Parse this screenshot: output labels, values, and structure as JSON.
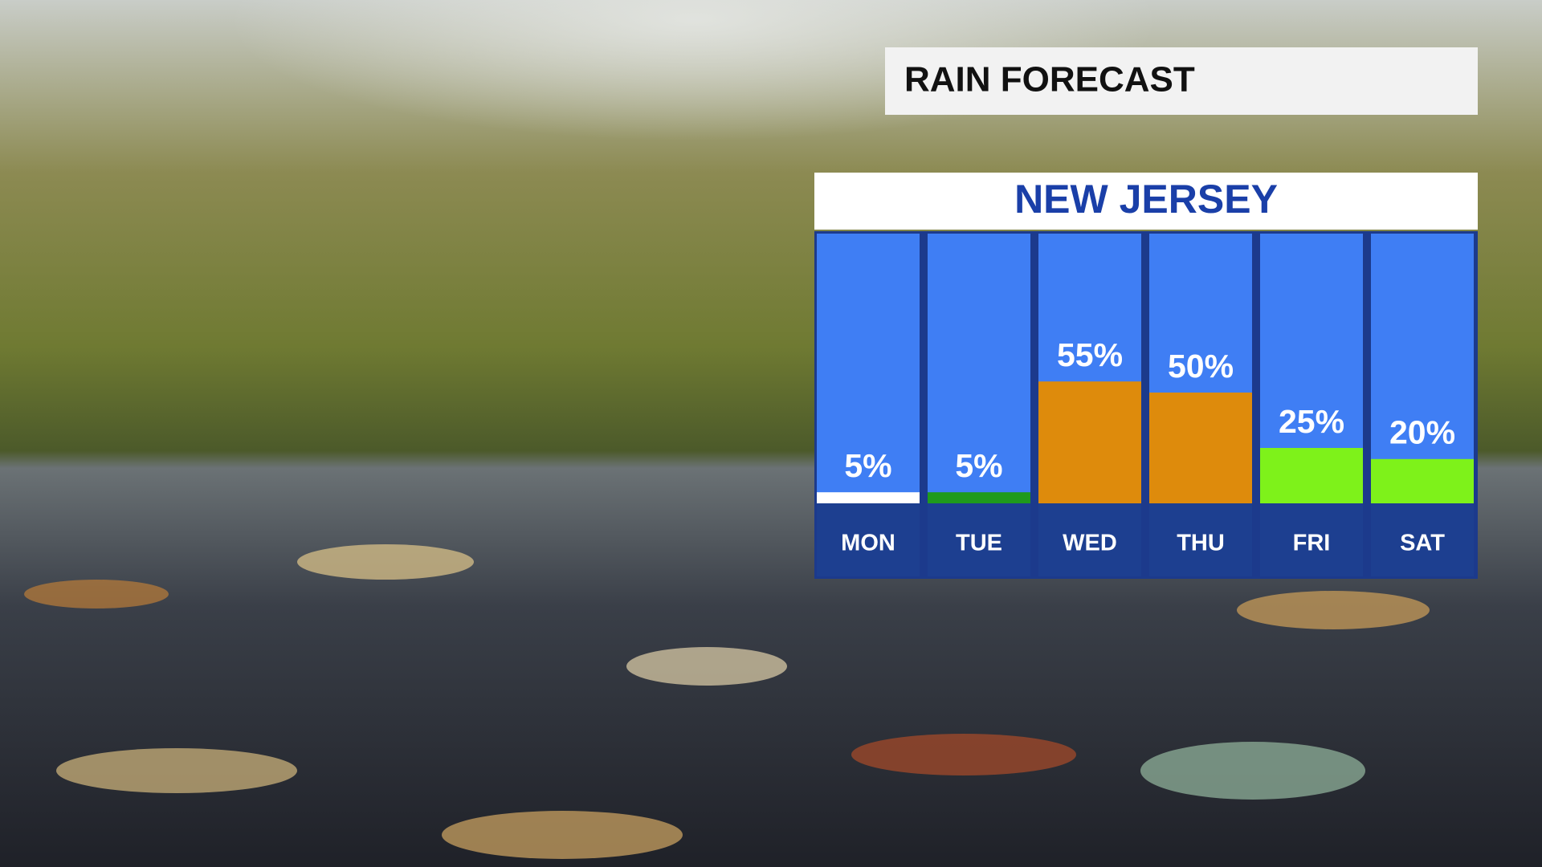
{
  "chart_data": {
    "type": "bar",
    "title": "RAIN FORECAST",
    "subtitle": "NEW JERSEY",
    "categories": [
      "MON",
      "TUE",
      "WED",
      "THU",
      "FRI",
      "SAT"
    ],
    "values": [
      5,
      5,
      55,
      50,
      25,
      20
    ],
    "value_labels": [
      "5%",
      "5%",
      "55%",
      "50%",
      "25%",
      "20%"
    ],
    "colors": [
      "#ffffff",
      "#1f9a1c",
      "#de8b0c",
      "#de8b0c",
      "#7ef21a",
      "#7ef21a"
    ]
  }
}
